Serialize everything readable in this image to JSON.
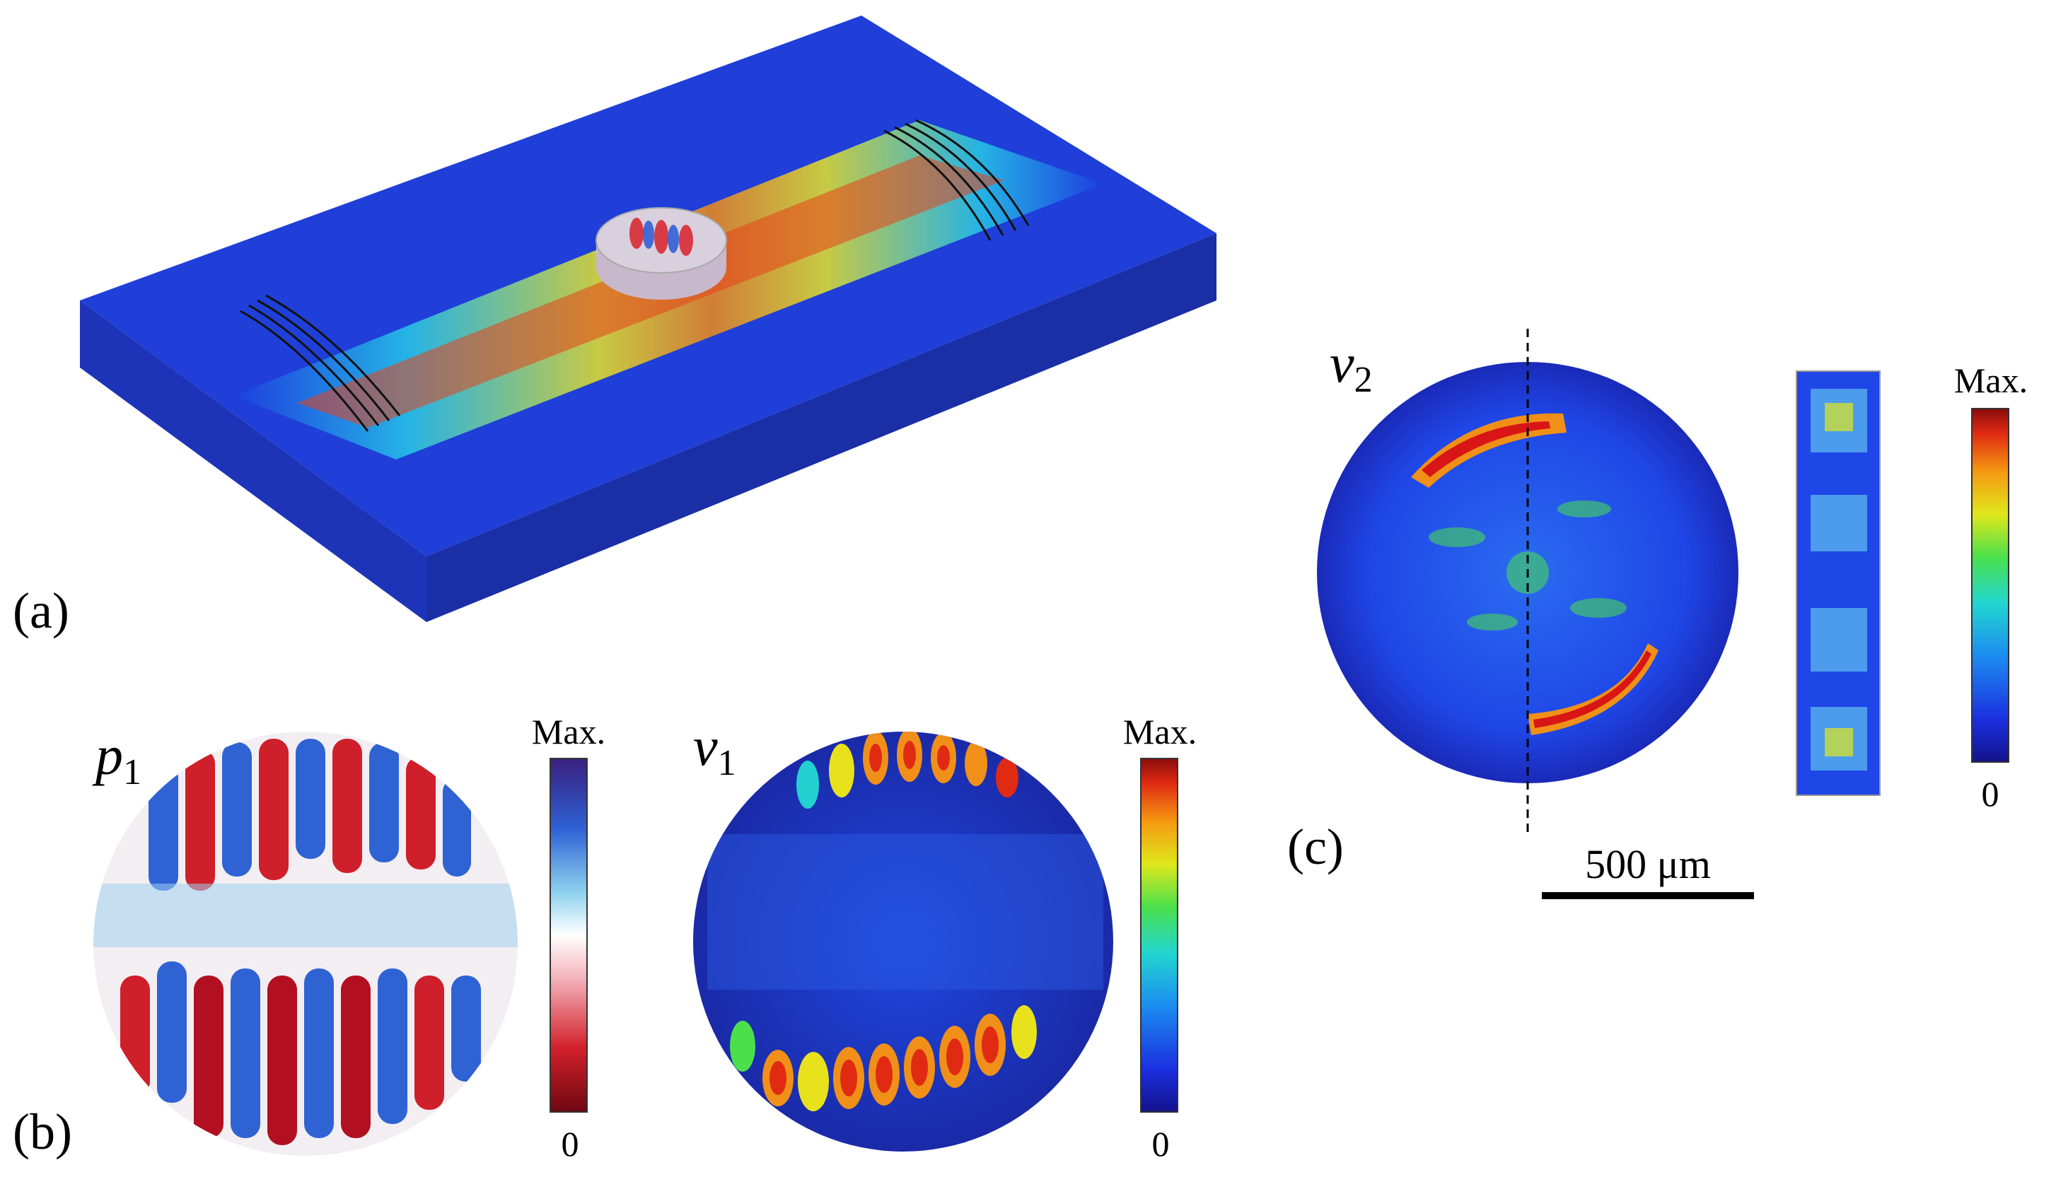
{
  "panel_labels": {
    "a": "(a)",
    "b": "(b)",
    "c": "(c)"
  },
  "fields": {
    "p1": {
      "symbol": "p",
      "subscript": "1"
    },
    "v1": {
      "symbol": "v",
      "subscript": "1"
    },
    "v2": {
      "symbol": "v",
      "subscript": "2"
    }
  },
  "colorbars": {
    "p1": {
      "max_label": "Max.",
      "min_label": "0",
      "colormap": "red-white-blue"
    },
    "v1": {
      "max_label": "Max.",
      "min_label": "0",
      "colormap": "jet"
    },
    "v2": {
      "max_label": "Max.",
      "min_label": "0",
      "colormap": "jet"
    }
  },
  "scale_bar": {
    "label": "500 μm"
  },
  "colors": {
    "jet_low": "#1a1a9e",
    "jet_mid": "#2fd06a",
    "jet_high": "#d81616",
    "div_low": "#7a0a14",
    "div_mid": "#ffffff",
    "div_high": "#3a1f8a"
  }
}
